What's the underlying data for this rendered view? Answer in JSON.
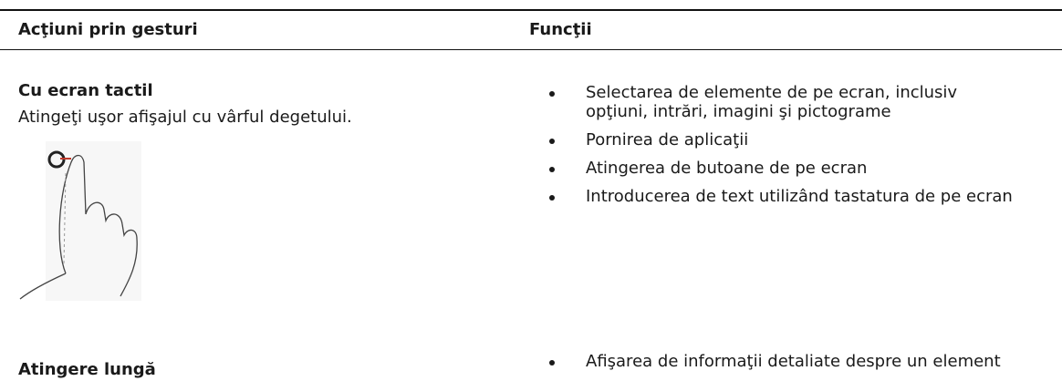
{
  "table": {
    "header": [
      "Acţiuni prin gesturi",
      "Funcţii"
    ],
    "rows": [
      {
        "title": "Cu ecran tactil",
        "description": "Atingeţi uşor afişajul cu vârful degetului.",
        "functions": [
          "Selectarea de elemente de pe ecran, inclusiv opţiuni, intrări, imagini şi pictograme",
          "Pornirea de aplicaţii",
          "Atingerea de butoane de pe ecran",
          "Introducerea de text utilizând tastatura de pe ecran"
        ]
      },
      {
        "title": "Atingere lungă",
        "functions": [
          "Afişarea de informaţii detaliate despre un element"
        ]
      }
    ]
  }
}
